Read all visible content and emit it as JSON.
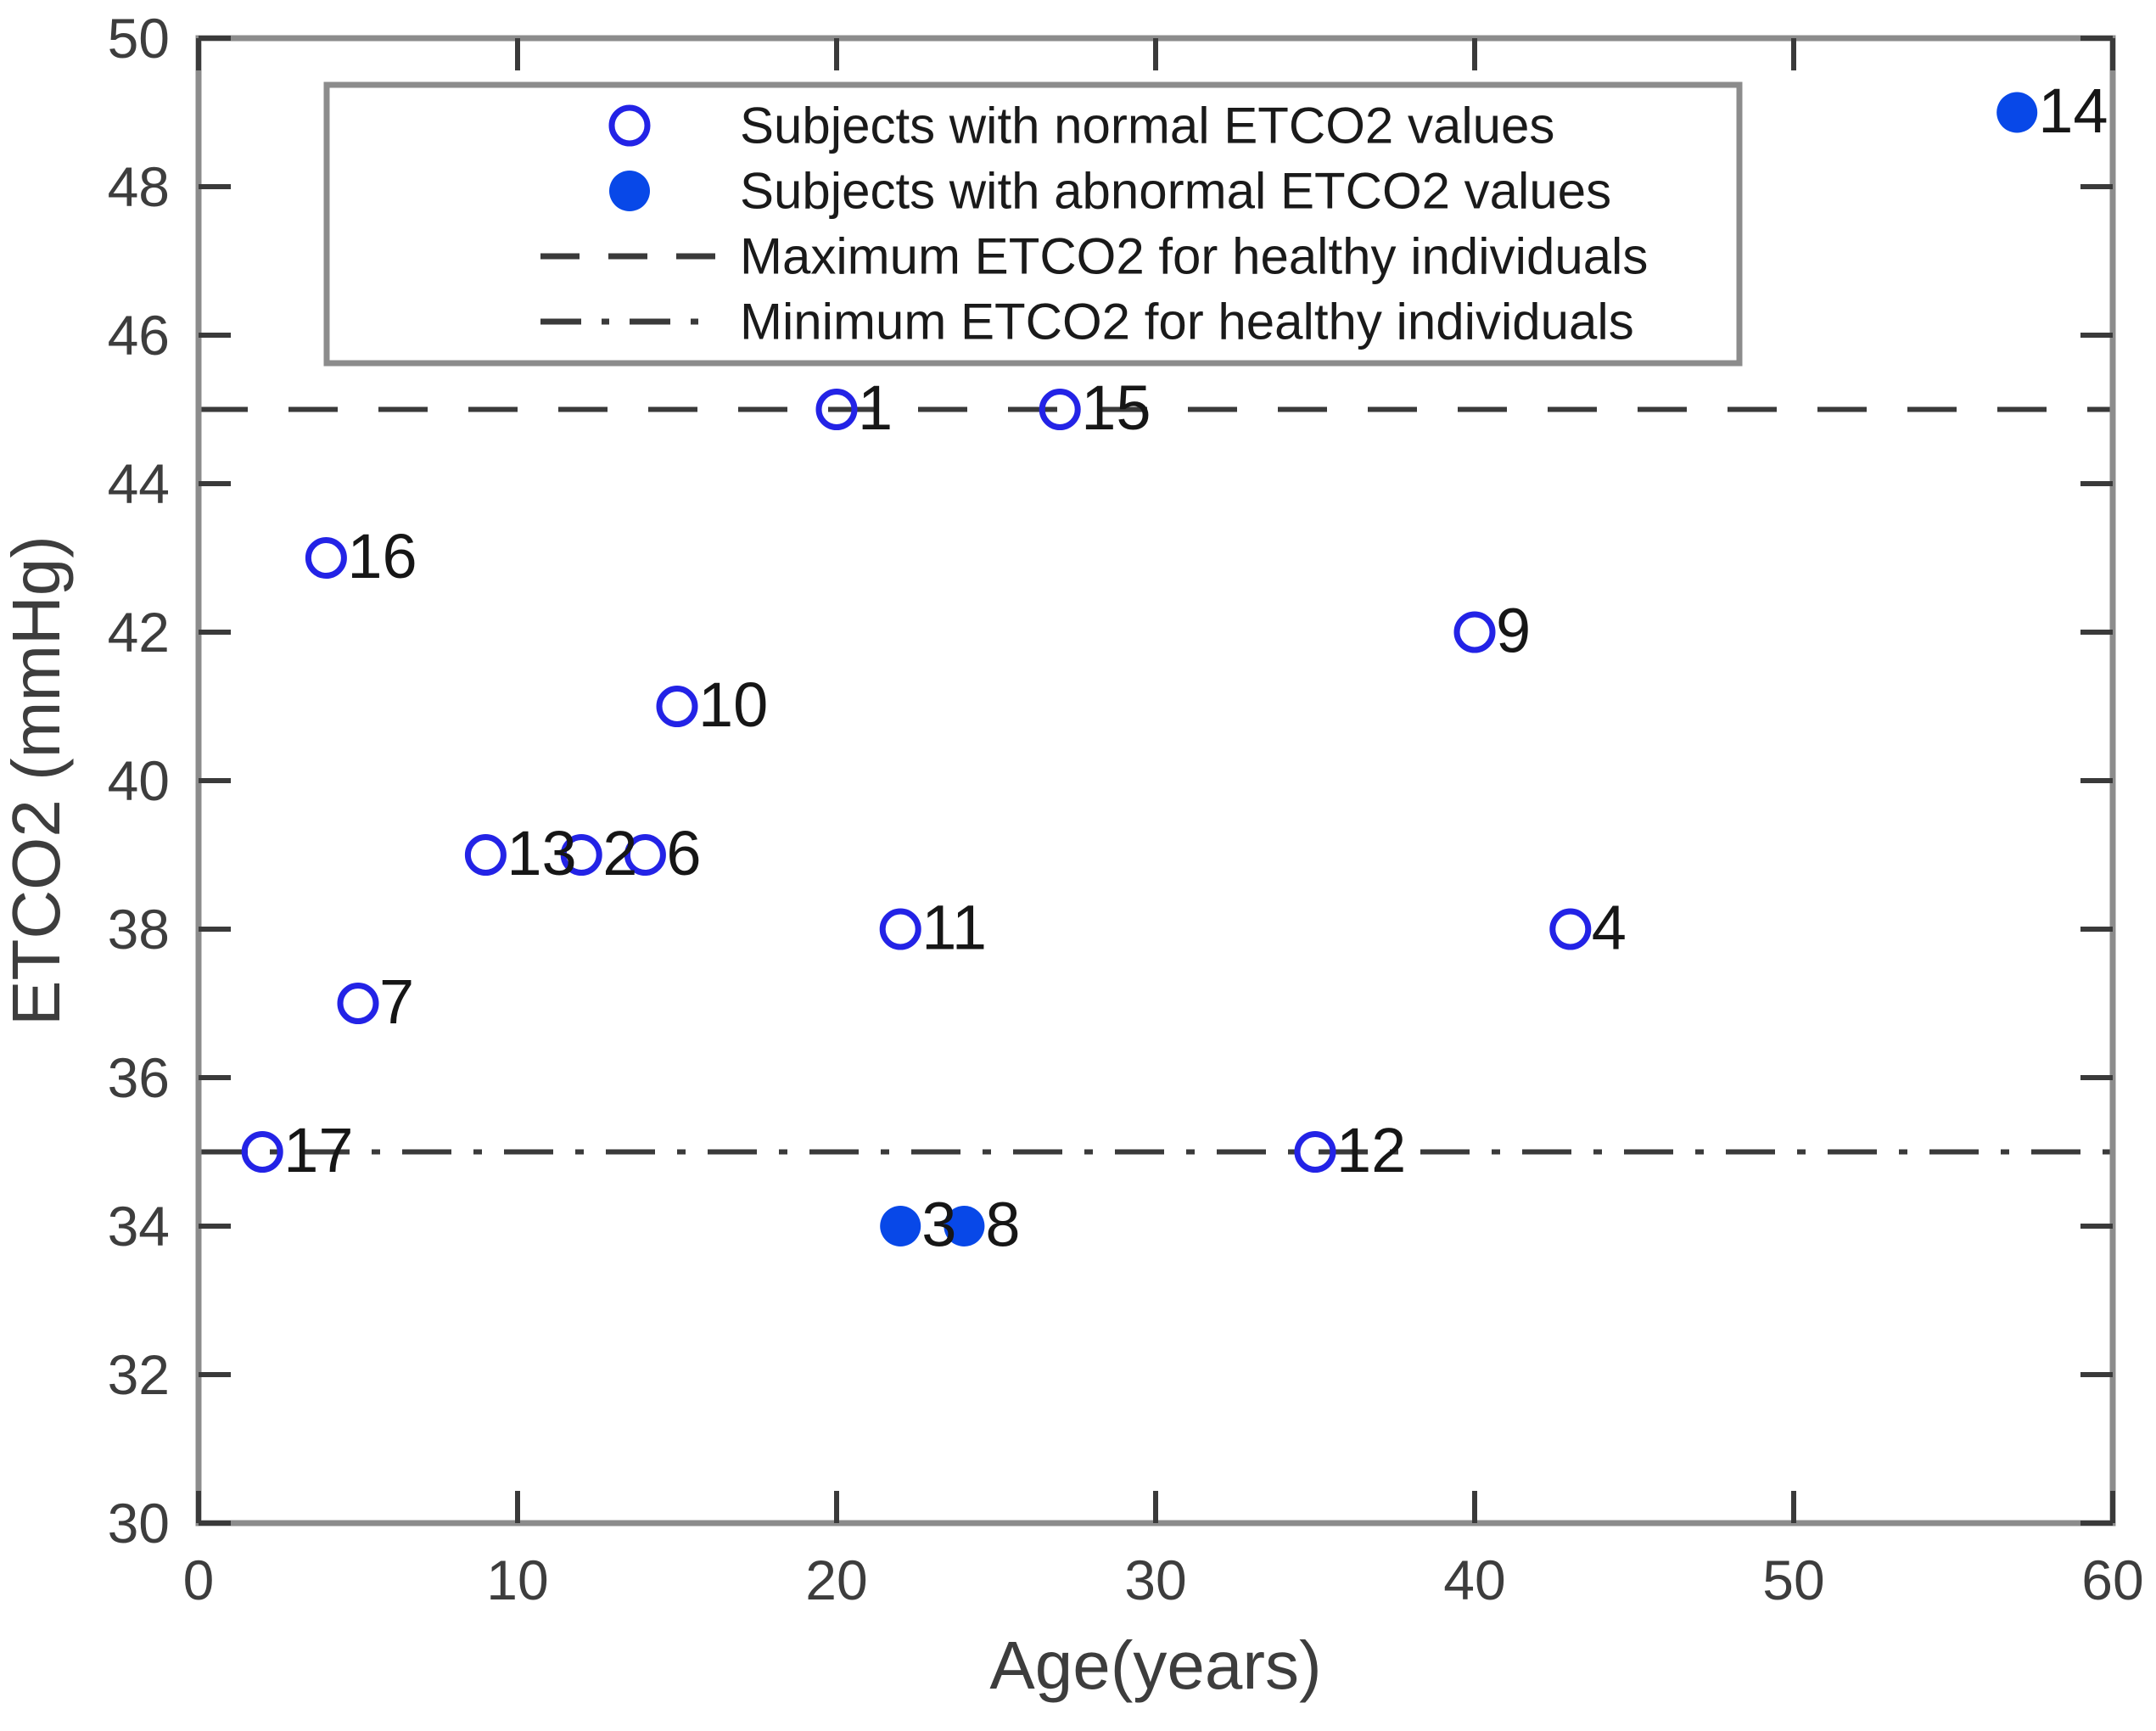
{
  "chart_data": {
    "type": "scatter",
    "title": "",
    "xlabel": "Age(years)",
    "ylabel": "ETCO2 (mmHg)",
    "xlim": [
      0,
      60
    ],
    "ylim": [
      30,
      50
    ],
    "xticks": [
      0,
      10,
      20,
      30,
      40,
      50,
      60
    ],
    "yticks": [
      30,
      32,
      34,
      36,
      38,
      40,
      42,
      44,
      46,
      48,
      50
    ],
    "grid": false,
    "legend_position": "top-inside",
    "series": [
      {
        "name": "Subjects with normal ETCO2 values",
        "marker": "open-circle",
        "color": "#2323e6",
        "points": [
          {
            "id": "1",
            "x": 20,
            "y": 45
          },
          {
            "id": "2",
            "x": 12,
            "y": 39
          },
          {
            "id": "4",
            "x": 43,
            "y": 38
          },
          {
            "id": "6",
            "x": 14,
            "y": 39
          },
          {
            "id": "7",
            "x": 5,
            "y": 37
          },
          {
            "id": "9",
            "x": 40,
            "y": 42
          },
          {
            "id": "10",
            "x": 15,
            "y": 41
          },
          {
            "id": "11",
            "x": 22,
            "y": 38
          },
          {
            "id": "12",
            "x": 35,
            "y": 35
          },
          {
            "id": "13",
            "x": 9,
            "y": 39
          },
          {
            "id": "15",
            "x": 27,
            "y": 45
          },
          {
            "id": "16",
            "x": 4,
            "y": 43
          },
          {
            "id": "17",
            "x": 2,
            "y": 35
          }
        ]
      },
      {
        "name": "Subjects with abnormal ETCO2 values",
        "marker": "filled-circle",
        "color": "#0848e8",
        "points": [
          {
            "id": "3",
            "x": 22,
            "y": 34
          },
          {
            "id": "8",
            "x": 24,
            "y": 34
          },
          {
            "id": "14",
            "x": 57,
            "y": 49
          }
        ]
      }
    ],
    "reference_lines": [
      {
        "name": "Maximum ETCO2 for healthy individuals",
        "y": 45,
        "style": "dashed"
      },
      {
        "name": "Minimum ETCO2 for healthy individuals",
        "y": 35,
        "style": "dashdot"
      }
    ],
    "legend_entries": [
      {
        "marker": "open-circle",
        "label": "Subjects with normal ETCO2 values"
      },
      {
        "marker": "filled-circle",
        "label": "Subjects with abnormal ETCO2 values"
      },
      {
        "marker": "dashed-line",
        "label": "Maximum ETCO2 for healthy individuals"
      },
      {
        "marker": "dashdot-line",
        "label": "Minimum ETCO2 for healthy individuals"
      }
    ]
  },
  "colors": {
    "open_marker": "#2323e6",
    "filled_marker": "#0848e8",
    "box_border": "#8c8c8c",
    "tick": "#3a3a3a",
    "tick_label": "#3d3d3d",
    "axis_label": "#3d3d3d",
    "ref_line": "#3a3a3a",
    "point_label": "#161616",
    "legend_text": "#1a1a1a",
    "background": "#ffffff"
  }
}
